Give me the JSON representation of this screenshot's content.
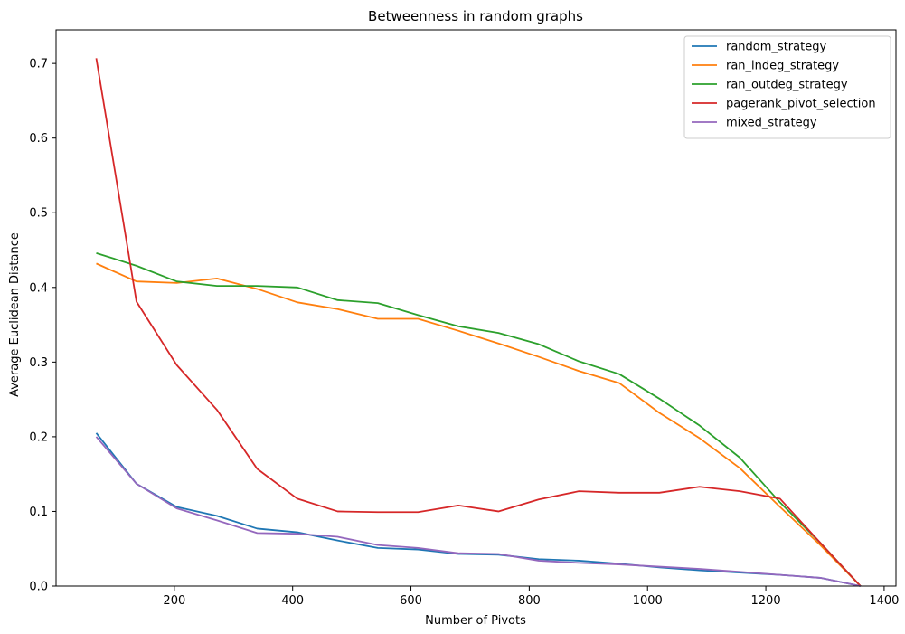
{
  "chart_data": {
    "type": "line",
    "title": "Betweenness in random graphs",
    "xlabel": "Number of Pivots",
    "ylabel": "Average Euclidean Distance",
    "xlim": [
      0,
      1420
    ],
    "ylim": [
      0,
      0.745
    ],
    "xticks": [
      200,
      400,
      600,
      800,
      1000,
      1200,
      1400
    ],
    "yticks": [
      0.0,
      0.1,
      0.2,
      0.3,
      0.4,
      0.5,
      0.6,
      0.7
    ],
    "grid": false,
    "legend_position": "top-right",
    "x": [
      68,
      136,
      204,
      272,
      340,
      408,
      476,
      544,
      612,
      680,
      748,
      816,
      884,
      952,
      1020,
      1088,
      1156,
      1224,
      1292,
      1360
    ],
    "series": [
      {
        "name": "random_strategy",
        "color": "#1f77b4",
        "values": [
          0.205,
          0.137,
          0.106,
          0.094,
          0.077,
          0.072,
          0.061,
          0.051,
          0.049,
          0.043,
          0.042,
          0.036,
          0.034,
          0.03,
          0.025,
          0.021,
          0.018,
          0.015,
          0.011,
          0.0
        ]
      },
      {
        "name": "ran_indeg_strategy",
        "color": "#ff7f0e",
        "values": [
          0.432,
          0.408,
          0.406,
          0.412,
          0.398,
          0.38,
          0.371,
          0.358,
          0.358,
          0.342,
          0.325,
          0.307,
          0.288,
          0.272,
          0.232,
          0.198,
          0.158,
          0.106,
          0.055,
          0.0
        ]
      },
      {
        "name": "ran_outdeg_strategy",
        "color": "#2ca02c",
        "values": [
          0.446,
          0.429,
          0.408,
          0.402,
          0.402,
          0.4,
          0.383,
          0.379,
          0.363,
          0.348,
          0.339,
          0.324,
          0.301,
          0.284,
          0.251,
          0.215,
          0.172,
          0.112,
          0.058,
          0.0
        ]
      },
      {
        "name": "pagerank_pivot_selection",
        "color": "#d62728",
        "values": [
          0.707,
          0.381,
          0.296,
          0.236,
          0.157,
          0.117,
          0.1,
          0.099,
          0.099,
          0.108,
          0.1,
          0.116,
          0.127,
          0.125,
          0.125,
          0.133,
          0.127,
          0.117,
          0.058,
          0.0
        ]
      },
      {
        "name": "mixed_strategy",
        "color": "#9467bd",
        "values": [
          0.2,
          0.137,
          0.104,
          0.088,
          0.071,
          0.07,
          0.066,
          0.055,
          0.051,
          0.044,
          0.043,
          0.034,
          0.031,
          0.029,
          0.026,
          0.023,
          0.019,
          0.015,
          0.011,
          0.0
        ]
      }
    ]
  }
}
